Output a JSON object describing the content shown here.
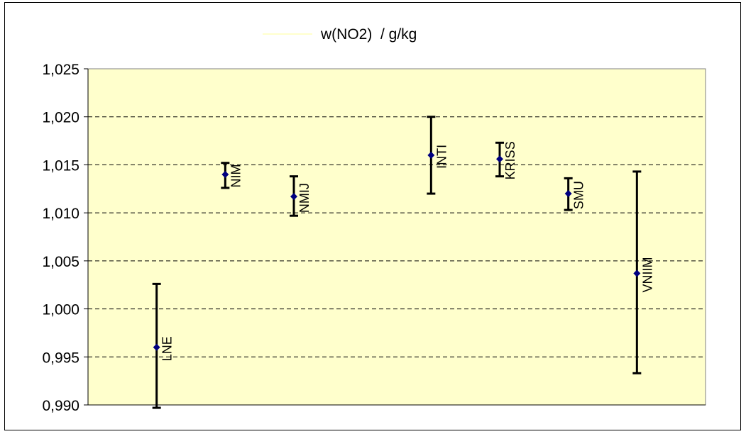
{
  "chart_data": {
    "type": "scatter",
    "title": "w(NO2)  / g/kg",
    "xlabel": "",
    "ylabel": "",
    "ylim": [
      0.99,
      1.025
    ],
    "yticks": [
      "0,990",
      "0,995",
      "1,000",
      "1,005",
      "1,010",
      "1,015",
      "1,020",
      "1,025"
    ],
    "grid": true,
    "legend": "top-center",
    "colors": {
      "plot_bg": "#ffffcc",
      "marker": "#000080",
      "error_bar": "#000000",
      "grid": "#000000"
    },
    "points": [
      {
        "label": "LNE",
        "x": 1,
        "y": 0.996,
        "low": 0.9897,
        "high": 1.0026
      },
      {
        "label": "NIM",
        "x": 2,
        "y": 1.014,
        "low": 1.0126,
        "high": 1.0152
      },
      {
        "label": "NMIJ",
        "x": 3,
        "y": 1.0117,
        "low": 1.0097,
        "high": 1.0138
      },
      {
        "label": "INTI",
        "x": 5,
        "y": 1.016,
        "low": 1.012,
        "high": 1.02
      },
      {
        "label": "KRISS",
        "x": 6,
        "y": 1.0156,
        "low": 1.0138,
        "high": 1.0173
      },
      {
        "label": "SMU",
        "x": 7,
        "y": 1.012,
        "low": 1.0103,
        "high": 1.0136
      },
      {
        "label": "VNIIM",
        "x": 8,
        "y": 1.0037,
        "low": 0.9933,
        "high": 1.0143
      }
    ]
  }
}
